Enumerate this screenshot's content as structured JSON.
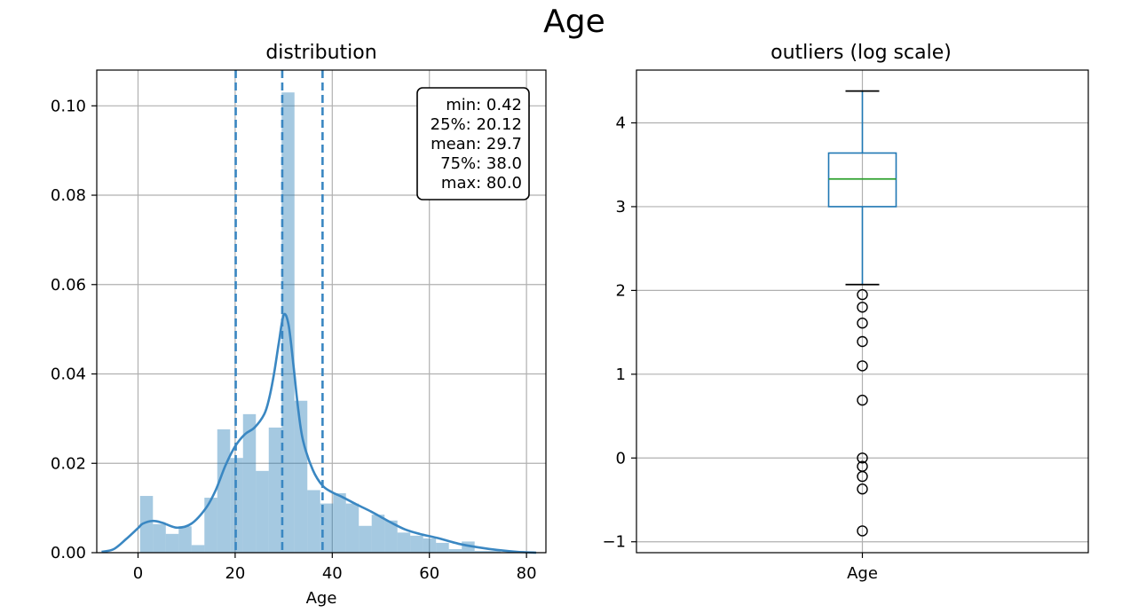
{
  "figure": {
    "suptitle": "Age"
  },
  "colors": {
    "blue": "#1f77b4",
    "kde": "#3a87c2",
    "hist": "#1f77b4",
    "median_green": "#2ca02c",
    "grid": "#b0b0b0"
  },
  "chart_data": [
    {
      "type": "bar",
      "title": "distribution",
      "xlabel": "Age",
      "ylabel": "",
      "xlim": [
        -8.5,
        84.0
      ],
      "ylim": [
        0,
        0.108
      ],
      "xticks": [
        0,
        20,
        40,
        60,
        80
      ],
      "xtick_labels": [
        "0",
        "20",
        "40",
        "60",
        "80"
      ],
      "yticks": [
        0,
        0.02,
        0.04,
        0.06,
        0.08,
        0.1
      ],
      "ytick_labels": [
        "0.00",
        "0.02",
        "0.04",
        "0.06",
        "0.08",
        "0.10"
      ],
      "grid": true,
      "bin_edges": [
        0.42,
        3.07,
        5.72,
        8.37,
        11.02,
        13.67,
        16.32,
        18.97,
        21.62,
        24.27,
        26.92,
        29.57,
        32.22,
        34.87,
        37.52,
        40.17,
        42.82,
        45.47,
        48.12,
        50.77,
        53.42,
        56.07,
        58.72,
        61.37,
        64.02,
        66.67,
        69.32,
        71.97,
        74.62,
        77.27,
        79.92
      ],
      "hist_values": [
        0.0127,
        0.0064,
        0.0042,
        0.0059,
        0.0017,
        0.0123,
        0.0276,
        0.0212,
        0.031,
        0.0183,
        0.028,
        0.103,
        0.034,
        0.014,
        0.011,
        0.0133,
        0.011,
        0.006,
        0.0085,
        0.0072,
        0.0045,
        0.0038,
        0.0032,
        0.0022,
        0.0008,
        0.0025,
        0.0004,
        0.0004,
        0.0,
        0.0002
      ],
      "kde": {
        "x": [
          -7.5,
          -5,
          -2.5,
          0,
          1,
          3,
          5,
          8,
          11,
          14,
          16,
          18,
          20,
          22,
          24,
          26,
          27,
          28,
          29,
          30,
          31,
          32,
          33,
          34,
          36,
          38,
          40,
          42,
          45,
          48,
          50,
          52,
          55,
          58,
          62,
          66,
          70,
          74,
          78,
          82
        ],
        "y": [
          0.0002,
          0.0008,
          0.003,
          0.0055,
          0.0065,
          0.0071,
          0.0067,
          0.0056,
          0.0065,
          0.01,
          0.014,
          0.0195,
          0.0238,
          0.0265,
          0.028,
          0.031,
          0.0345,
          0.04,
          0.047,
          0.0532,
          0.051,
          0.042,
          0.032,
          0.025,
          0.0185,
          0.015,
          0.0135,
          0.0125,
          0.0108,
          0.0092,
          0.008,
          0.0068,
          0.0052,
          0.0042,
          0.0032,
          0.002,
          0.0012,
          0.0006,
          0.0002,
          0.0
        ]
      },
      "vlines": [
        {
          "name": "q1-line",
          "x": 20.12
        },
        {
          "name": "mean-line",
          "x": 29.7
        },
        {
          "name": "q3-line",
          "x": 38.0
        }
      ],
      "stats_box": [
        "min: 0.42",
        "25%: 20.12",
        "mean: 29.7",
        "75%: 38.0",
        "max: 80.0"
      ],
      "legend": "top-right"
    },
    {
      "type": "box",
      "title": "outliers (log scale)",
      "xlabel": "",
      "ylim": [
        -1.13,
        4.63
      ],
      "yticks": [
        -1,
        0,
        1,
        2,
        3,
        4
      ],
      "ytick_labels": [
        "−1",
        "0",
        "1",
        "2",
        "3",
        "4"
      ],
      "category": "Age",
      "grid": true,
      "box": {
        "whisker_low": 2.07,
        "q1": 3.0,
        "median": 3.33,
        "q3": 3.64,
        "whisker_high": 4.38
      },
      "outliers": [
        1.95,
        1.8,
        1.61,
        1.39,
        1.1,
        0.69,
        0.0,
        -0.1,
        -0.22,
        -0.37,
        -0.87
      ]
    }
  ]
}
